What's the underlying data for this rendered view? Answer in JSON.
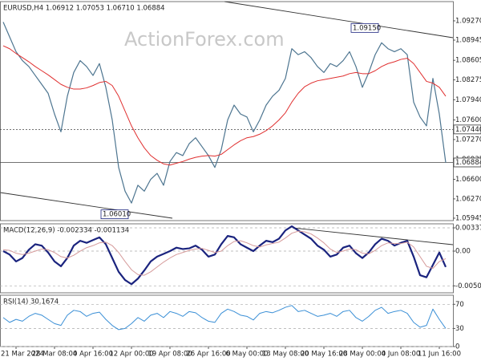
{
  "chart_data": [
    {
      "type": "line",
      "title": "EURUSD,H4  1.06912 1.07053 1.06710 1.06884",
      "watermark": "ActionForex.com",
      "ylim": [
        1.05904,
        1.09594
      ],
      "yticks": [
        {
          "value": 1.0927,
          "label": "1.09270"
        },
        {
          "value": 1.08945,
          "label": "1.08945"
        },
        {
          "value": 1.08605,
          "label": "1.08605"
        },
        {
          "value": 1.08275,
          "label": "1.08275"
        },
        {
          "value": 1.0794,
          "label": "1.07940"
        },
        {
          "value": 1.076,
          "label": "1.07600"
        },
        {
          "value": 1.0727,
          "label": "1.07270"
        },
        {
          "value": 1.06935,
          "label": "1.06935"
        },
        {
          "value": 1.066,
          "label": "1.06600"
        },
        {
          "value": 1.0627,
          "label": "1.06270"
        },
        {
          "value": 1.05945,
          "label": "1.05945"
        }
      ],
      "grid": false,
      "series": [
        {
          "color": "#4d7590",
          "width": 1.2,
          "values": [
            1.0925,
            1.09,
            1.0875,
            1.086,
            1.085,
            1.0835,
            1.082,
            1.0805,
            1.077,
            1.074,
            1.08,
            1.084,
            1.086,
            1.085,
            1.0835,
            1.0855,
            1.0815,
            1.076,
            1.068,
            1.064,
            1.062,
            1.065,
            1.064,
            1.066,
            1.067,
            1.065,
            1.069,
            1.0705,
            1.07,
            1.072,
            1.073,
            1.0715,
            1.07,
            1.068,
            1.071,
            1.076,
            1.0785,
            1.077,
            1.0765,
            1.074,
            1.076,
            1.0785,
            1.08,
            1.081,
            1.083,
            1.088,
            1.087,
            1.0875,
            1.0865,
            1.085,
            1.084,
            1.0855,
            1.085,
            1.086,
            1.0875,
            1.085,
            1.0815,
            1.084,
            1.087,
            1.089,
            1.088,
            1.0875,
            1.088,
            1.087,
            1.079,
            1.0765,
            1.075,
            1.083,
            1.077,
            1.0688
          ]
        },
        {
          "color": "#e03030",
          "width": 1,
          "values": [
            1.0885,
            1.088,
            1.0872,
            1.0865,
            1.0858,
            1.085,
            1.0843,
            1.0836,
            1.0828,
            1.082,
            1.0815,
            1.0812,
            1.0812,
            1.0814,
            1.0818,
            1.0823,
            1.0825,
            1.0818,
            1.08,
            1.0775,
            1.075,
            1.073,
            1.0713,
            1.07,
            1.0692,
            1.0686,
            1.0684,
            1.0687,
            1.069,
            1.0694,
            1.0697,
            1.0699,
            1.07,
            1.0699,
            1.0702,
            1.071,
            1.0718,
            1.0725,
            1.073,
            1.0732,
            1.0736,
            1.0742,
            1.075,
            1.076,
            1.0772,
            1.079,
            1.0805,
            1.0816,
            1.0822,
            1.0826,
            1.0828,
            1.083,
            1.0832,
            1.0834,
            1.0838,
            1.084,
            1.0838,
            1.0838,
            1.0843,
            1.085,
            1.0855,
            1.0858,
            1.0862,
            1.0864,
            1.0855,
            1.084,
            1.0825,
            1.0822,
            1.0815,
            1.08
          ]
        }
      ],
      "annotations": [
        {
          "label": "1.09150",
          "value": 1.0915
        },
        {
          "label": "1.06010",
          "value": 1.0601
        }
      ],
      "levels": [
        {
          "label": "1.07440",
          "value": 1.0744,
          "style": "dotted"
        },
        {
          "label": "1.06884",
          "value": 1.06884,
          "style": "solid"
        }
      ]
    },
    {
      "type": "line",
      "title": "MACD(12,26,9) -0.002334 -0.001134",
      "ylim": [
        -0.00605,
        0.00396
      ],
      "yticks": [
        0.003375,
        {
          "value": 0,
          "label": "0.00"
        },
        -0.00504
      ],
      "grid": true,
      "series": [
        {
          "color": "#1a237e",
          "width": 2.2,
          "values": [
            0,
            -0.0005,
            -0.0015,
            -0.001,
            0.0002,
            0.001,
            0.0008,
            -0.0002,
            -0.0015,
            -0.0022,
            -0.001,
            0.0008,
            0.0015,
            0.0012,
            0.0016,
            0.002,
            0.001,
            -0.001,
            -0.003,
            -0.0042,
            -0.0048,
            -0.004,
            -0.0028,
            -0.0015,
            -0.0008,
            -0.0004,
            0,
            0.0005,
            0.0003,
            0.0004,
            0.0008,
            0.0002,
            -0.0008,
            -0.0005,
            0.001,
            0.0022,
            0.002,
            0.001,
            0.0005,
            0,
            0.0008,
            0.0015,
            0.0013,
            0.0018,
            0.003,
            0.0036,
            0.003,
            0.0024,
            0.0018,
            0.0008,
            0.0002,
            -0.0008,
            -0.0005,
            0.0005,
            0.0008,
            -0.0003,
            -0.001,
            -0.0002,
            0.001,
            0.0018,
            0.0015,
            0.0008,
            0.0012,
            0.0015,
            -0.0008,
            -0.0035,
            -0.0038,
            -0.002,
            -0.0002,
            -0.0023
          ]
        },
        {
          "color": "#d59a9a",
          "width": 1,
          "values": [
            0.0002,
            0.0001,
            -0.0003,
            -0.0005,
            -0.0003,
            0,
            0.0003,
            0.0002,
            -0.0002,
            -0.0008,
            -0.001,
            -0.0006,
            0,
            0.0005,
            0.0008,
            0.0012,
            0.0013,
            0.0008,
            -0.0002,
            -0.0015,
            -0.0027,
            -0.0034,
            -0.0035,
            -0.003,
            -0.0023,
            -0.0016,
            -0.001,
            -0.0005,
            -0.0002,
            0.0001,
            0.0003,
            0.0004,
            0.0001,
            -0.0002,
            0,
            0.0008,
            0.0014,
            0.0015,
            0.0012,
            0.0008,
            0.0006,
            0.0009,
            0.0011,
            0.0013,
            0.0019,
            0.0026,
            0.0029,
            0.0028,
            0.0025,
            0.0019,
            0.0012,
            0.0003,
            -0.0002,
            0,
            0.0003,
            0.0002,
            -0.0003,
            -0.0004,
            0.0001,
            0.0008,
            0.0012,
            0.0011,
            0.0011,
            0.0013,
            0.0006,
            -0.0008,
            -0.0022,
            -0.0025,
            -0.0015,
            -0.0011
          ]
        }
      ]
    },
    {
      "type": "line",
      "title": "RSI(14) 30.1674",
      "ylim": [
        0,
        85
      ],
      "yticks": [
        70,
        30,
        0
      ],
      "grid": true,
      "categories": [
        null,
        null,
        "21 Mar 2024",
        null,
        null,
        null,
        null,
        null,
        "28 Mar 08:00",
        null,
        null,
        null,
        null,
        null,
        "4 Apr 16:00",
        null,
        null,
        null,
        null,
        null,
        "12 Apr 00:00",
        null,
        null,
        null,
        null,
        null,
        "19 Apr 08:00",
        null,
        null,
        null,
        null,
        null,
        "26 Apr 16:00",
        null,
        null,
        null,
        null,
        null,
        "6 May 00:00",
        null,
        null,
        null,
        null,
        null,
        "13 May 08:00",
        null,
        null,
        null,
        null,
        null,
        "20 May 16:00",
        null,
        null,
        null,
        null,
        null,
        "28 May 00:00",
        null,
        null,
        null,
        null,
        null,
        "4 Jun 08:00",
        null,
        null,
        null,
        null,
        null,
        "11 Jun 16:00",
        null
      ],
      "series": [
        {
          "color": "#3a8fd6",
          "width": 1,
          "values": [
            48,
            40,
            45,
            42,
            50,
            55,
            52,
            45,
            38,
            35,
            52,
            60,
            58,
            50,
            55,
            57,
            45,
            35,
            28,
            30,
            38,
            48,
            42,
            52,
            55,
            48,
            58,
            55,
            50,
            58,
            56,
            48,
            42,
            40,
            55,
            62,
            58,
            52,
            50,
            44,
            55,
            58,
            56,
            60,
            65,
            68,
            58,
            60,
            55,
            50,
            52,
            55,
            50,
            58,
            60,
            48,
            42,
            50,
            60,
            65,
            55,
            58,
            60,
            55,
            40,
            32,
            35,
            62,
            45,
            30
          ]
        }
      ]
    }
  ]
}
